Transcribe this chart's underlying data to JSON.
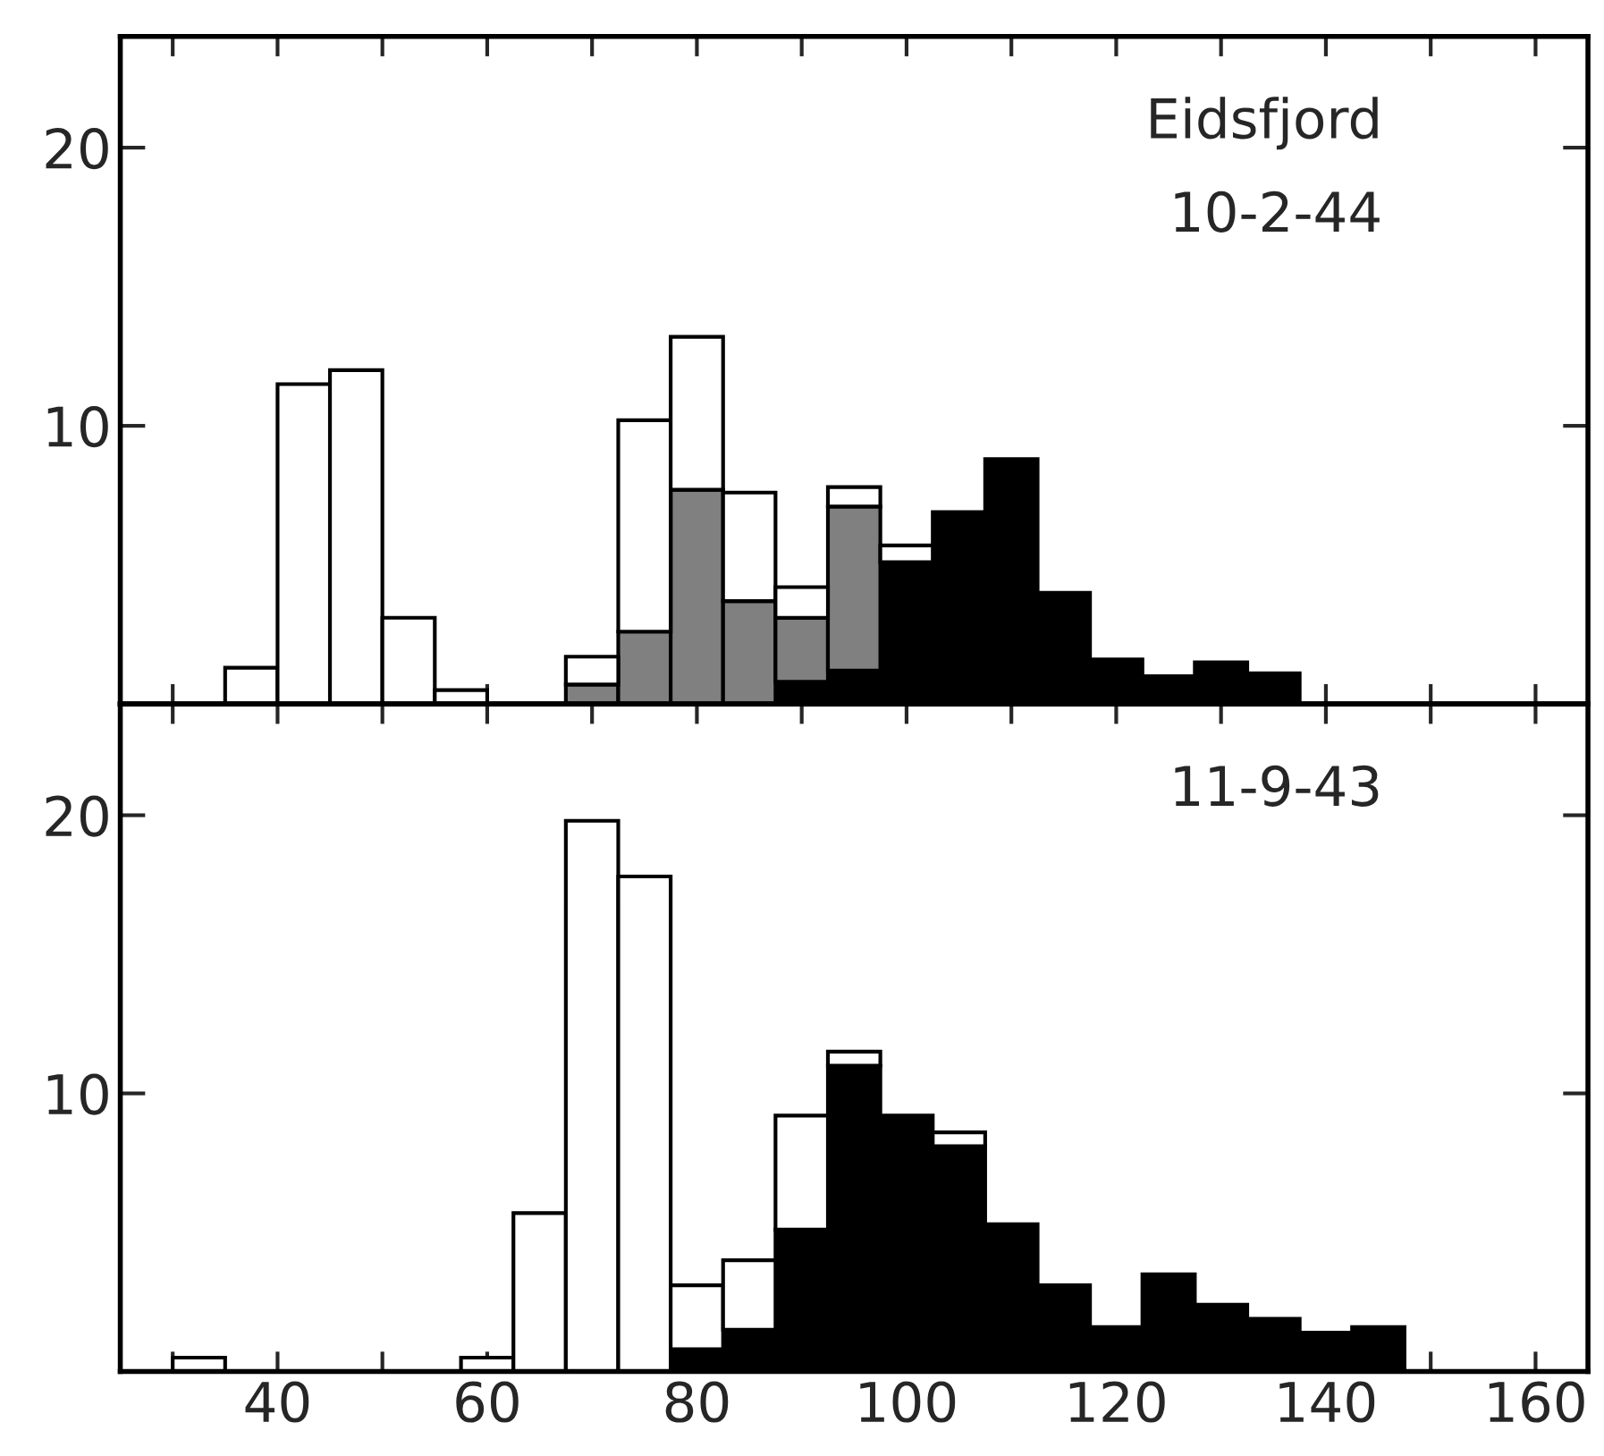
{
  "chart_data": [
    {
      "type": "bar",
      "stacked": true,
      "tick_labels": "y",
      "annotations": [
        "Eidsfjord",
        "10-2-44"
      ],
      "x": [
        37.5,
        42.5,
        47.5,
        52.5,
        57.5,
        70,
        75,
        80,
        85,
        90,
        95,
        100,
        105,
        110,
        115,
        120,
        125,
        130,
        135
      ],
      "series": [
        {
          "color": "#000000",
          "values": [
            null,
            null,
            null,
            null,
            null,
            null,
            null,
            null,
            null,
            0.8,
            1.2,
            5.1,
            6.9,
            8.8,
            4.0,
            1.6,
            1.0,
            1.5,
            1.1
          ]
        },
        {
          "color": "#808080",
          "values": [
            null,
            null,
            null,
            null,
            null,
            0.7,
            2.6,
            7.7,
            3.7,
            2.3,
            5.9,
            null,
            null,
            null,
            null,
            null,
            null,
            null,
            null
          ]
        },
        {
          "color": "#ffffff",
          "values": [
            1.3,
            11.5,
            12.0,
            3.1,
            0.5,
            1.0,
            7.6,
            5.5,
            3.9,
            1.1,
            0.7,
            0.6,
            null,
            null,
            null,
            null,
            null,
            null,
            null
          ]
        }
      ],
      "xlim": [
        25,
        165
      ],
      "ylim": [
        0,
        24
      ],
      "yticks": [
        10,
        20
      ],
      "xticks": [
        {
          "value": 30,
          "label": null
        },
        {
          "value": 40,
          "label": null
        },
        {
          "value": 50,
          "label": null
        },
        {
          "value": 60,
          "label": null
        },
        {
          "value": 70,
          "label": null
        },
        {
          "value": 80,
          "label": null
        },
        {
          "value": 90,
          "label": null
        },
        {
          "value": 100,
          "label": null
        },
        {
          "value": 110,
          "label": null
        },
        {
          "value": 120,
          "label": null
        },
        {
          "value": 130,
          "label": null
        },
        {
          "value": 140,
          "label": null
        },
        {
          "value": 150,
          "label": null
        },
        {
          "value": 160,
          "label": null
        }
      ]
    },
    {
      "type": "bar",
      "stacked": true,
      "annotations": [
        "11-9-43"
      ],
      "x": [
        32.5,
        60,
        65,
        70,
        75,
        80,
        85,
        90,
        95,
        100,
        105,
        110,
        115,
        120,
        125,
        130,
        135,
        140,
        145
      ],
      "series": [
        {
          "color": "#000000",
          "values": [
            null,
            null,
            null,
            null,
            null,
            0.8,
            1.5,
            5.1,
            11.0,
            9.2,
            8.1,
            5.3,
            3.1,
            1.6,
            3.5,
            2.4,
            1.9,
            1.4,
            1.6
          ]
        },
        {
          "color": "#ffffff",
          "values": [
            0.5,
            0.5,
            5.7,
            19.8,
            17.8,
            2.3,
            2.5,
            4.1,
            0.5,
            null,
            0.5,
            null,
            null,
            null,
            null,
            null,
            null,
            null,
            null
          ]
        }
      ],
      "xlim": [
        25,
        165
      ],
      "ylim": [
        0,
        24
      ],
      "yticks": [
        10,
        20
      ],
      "xticks": [
        {
          "value": 30,
          "label": null
        },
        {
          "value": 40,
          "label": "40"
        },
        {
          "value": 50,
          "label": null
        },
        {
          "value": 60,
          "label": "60"
        },
        {
          "value": 70,
          "label": null
        },
        {
          "value": 80,
          "label": "80"
        },
        {
          "value": 90,
          "label": null
        },
        {
          "value": 100,
          "label": "100"
        },
        {
          "value": 110,
          "label": null
        },
        {
          "value": 120,
          "label": "120"
        },
        {
          "value": 130,
          "label": null
        },
        {
          "value": 140,
          "label": "140"
        },
        {
          "value": 150,
          "label": null
        },
        {
          "value": 160,
          "label": "160"
        }
      ]
    }
  ]
}
